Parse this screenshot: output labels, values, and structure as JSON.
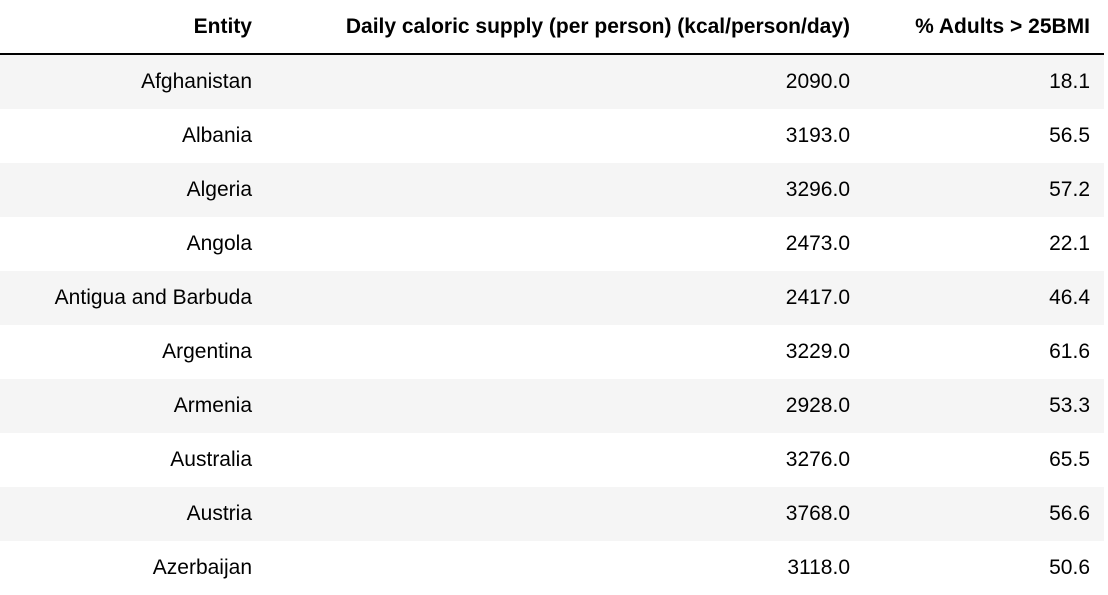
{
  "chart_data": {
    "type": "table",
    "columns": [
      "Entity",
      "Daily caloric supply (per person) (kcal/person/day)",
      "% Adults > 25BMI"
    ],
    "rows": [
      [
        "Afghanistan",
        "2090.0",
        "18.1"
      ],
      [
        "Albania",
        "3193.0",
        "56.5"
      ],
      [
        "Algeria",
        "3296.0",
        "57.2"
      ],
      [
        "Angola",
        "2473.0",
        "22.1"
      ],
      [
        "Antigua and Barbuda",
        "2417.0",
        "46.4"
      ],
      [
        "Argentina",
        "3229.0",
        "61.6"
      ],
      [
        "Armenia",
        "2928.0",
        "53.3"
      ],
      [
        "Australia",
        "3276.0",
        "65.5"
      ],
      [
        "Austria",
        "3768.0",
        "56.6"
      ],
      [
        "Azerbaijan",
        "3118.0",
        "50.6"
      ]
    ],
    "colors": {
      "stripe": "#f5f5f5",
      "background": "#ffffff",
      "header_rule": "#000000",
      "text": "#000000"
    }
  }
}
